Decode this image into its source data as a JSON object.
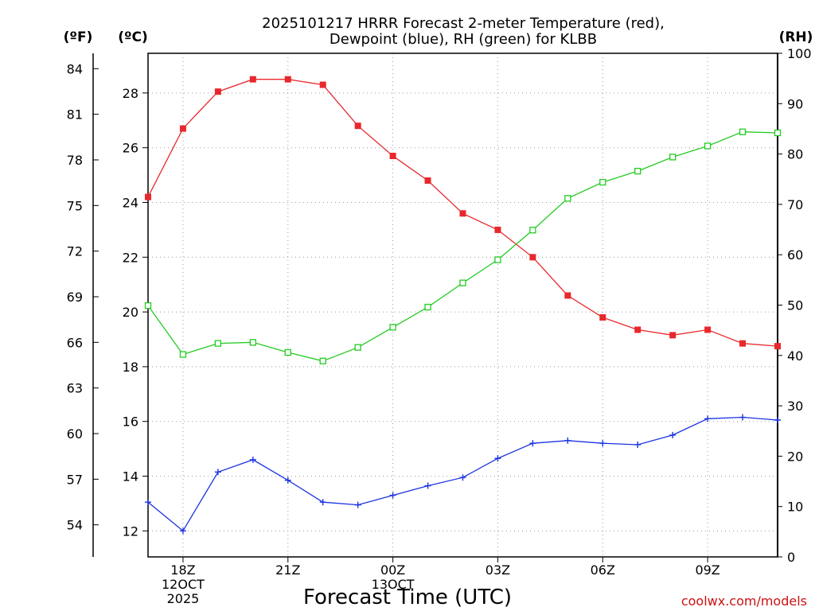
{
  "chart_data": {
    "type": "line",
    "title_line1": "2025101217 HRRR Forecast 2-meter Temperature (red),",
    "title_line2": "Dewpoint (blue), RH (green) for KLBB",
    "xlabel": "Forecast Time (UTC)",
    "credit": "coolwx.com/models",
    "units": {
      "fahrenheit": "(ºF)",
      "celsius": "(ºC)",
      "rh": "(RH)"
    },
    "x_hours": [
      17,
      18,
      19,
      20,
      21,
      22,
      23,
      24,
      25,
      26,
      27,
      28,
      29,
      30,
      31,
      32,
      33,
      34,
      35
    ],
    "x_ticks": [
      {
        "hour": 18,
        "lines": [
          "18Z",
          "12OCT",
          "2025"
        ]
      },
      {
        "hour": 21,
        "lines": [
          "21Z"
        ]
      },
      {
        "hour": 24,
        "lines": [
          "00Z",
          "13OCT"
        ]
      },
      {
        "hour": 27,
        "lines": [
          "03Z"
        ]
      },
      {
        "hour": 30,
        "lines": [
          "06Z"
        ]
      },
      {
        "hour": 33,
        "lines": [
          "09Z"
        ]
      }
    ],
    "xlim": [
      17,
      35
    ],
    "ylim_c": [
      11.05,
      29.45
    ],
    "ylim_rh": [
      0,
      100
    ],
    "c_ticks": [
      12,
      14,
      16,
      18,
      20,
      22,
      24,
      26,
      28
    ],
    "f_ticks": [
      54,
      57,
      60,
      63,
      66,
      69,
      72,
      75,
      78,
      81,
      84
    ],
    "rh_ticks": [
      0,
      10,
      20,
      30,
      40,
      50,
      60,
      70,
      80,
      90,
      100
    ],
    "series": [
      {
        "name": "Temperature",
        "axis": "c",
        "color": "#e8282c",
        "marker": "filled-square",
        "values": [
          24.2,
          26.7,
          28.05,
          28.5,
          28.5,
          28.3,
          26.8,
          25.7,
          24.8,
          23.6,
          23.0,
          22.0,
          20.6,
          19.8,
          19.35,
          19.15,
          19.35,
          18.85,
          18.75
        ]
      },
      {
        "name": "Dewpoint",
        "axis": "c",
        "color": "#1c34e0",
        "marker": "plus",
        "values": [
          13.05,
          12.0,
          14.15,
          14.6,
          13.85,
          13.05,
          12.95,
          13.3,
          13.65,
          13.95,
          14.65,
          15.2,
          15.3,
          15.2,
          15.15,
          15.5,
          16.1,
          16.15,
          16.05
        ]
      },
      {
        "name": "RH",
        "axis": "rh",
        "color": "#22cc22",
        "marker": "open-square",
        "values": [
          49.9,
          40.2,
          42.4,
          42.6,
          40.6,
          38.9,
          41.6,
          45.6,
          49.6,
          54.4,
          59.0,
          64.9,
          71.2,
          74.4,
          76.6,
          79.4,
          81.6,
          84.4,
          84.2
        ]
      }
    ]
  }
}
